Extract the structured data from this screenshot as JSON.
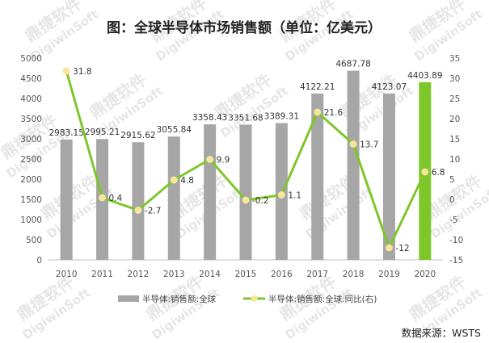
{
  "chart_data": {
    "type": "bar",
    "title": "图：全球半导体市场销售额（单位：亿美元）",
    "categories": [
      "2010",
      "2011",
      "2012",
      "2013",
      "2014",
      "2015",
      "2016",
      "2017",
      "2018",
      "2019",
      "2020"
    ],
    "series": [
      {
        "name": "半导体:销售额:全球",
        "type": "bar",
        "axis": "left",
        "values": [
          2983.15,
          2995.21,
          2915.62,
          3055.84,
          3358.43,
          3351.68,
          3389.31,
          4122.21,
          4687.78,
          4123.07,
          4403.89
        ],
        "labels": [
          "2983.15",
          "2995.21",
          "2915.62",
          "3055.84",
          "3358.43",
          "3351.68",
          "3389.31",
          "4122.21",
          "4687.78",
          "4123.07",
          "4403.89"
        ],
        "color": "#a6a6a6",
        "highlight_index": 10,
        "highlight_color": "#7ec72a"
      },
      {
        "name": "半导体:销售额:全球:同比(右)",
        "type": "line",
        "axis": "right",
        "values": [
          31.8,
          0.4,
          -2.7,
          4.8,
          9.9,
          -0.2,
          1.1,
          21.6,
          13.7,
          -12,
          6.8
        ],
        "labels": [
          "31.8",
          "0.4",
          "-2.7",
          "4.8",
          "9.9",
          "-0.2",
          "1.1",
          "21.6",
          "13.7",
          "-12",
          "6.8"
        ],
        "color": "#7ec72a",
        "marker_color": "#f6e59a"
      }
    ],
    "y_left": {
      "min": 0,
      "max": 5000,
      "step": 500,
      "ticks": [
        "0",
        "500",
        "1000",
        "1500",
        "2000",
        "2500",
        "3000",
        "3500",
        "4000",
        "4500",
        "5000"
      ]
    },
    "y_right": {
      "min": -15,
      "max": 35,
      "step": 5,
      "ticks": [
        "-15",
        "-10",
        "-5",
        "0",
        "5",
        "10",
        "15",
        "20",
        "25",
        "30",
        "35"
      ]
    },
    "grid": false,
    "legend_position": "bottom"
  },
  "source": "数据来源：WSTS",
  "watermark": {
    "line1": "鼎捷软件",
    "line2": "DigiwinSoft"
  }
}
